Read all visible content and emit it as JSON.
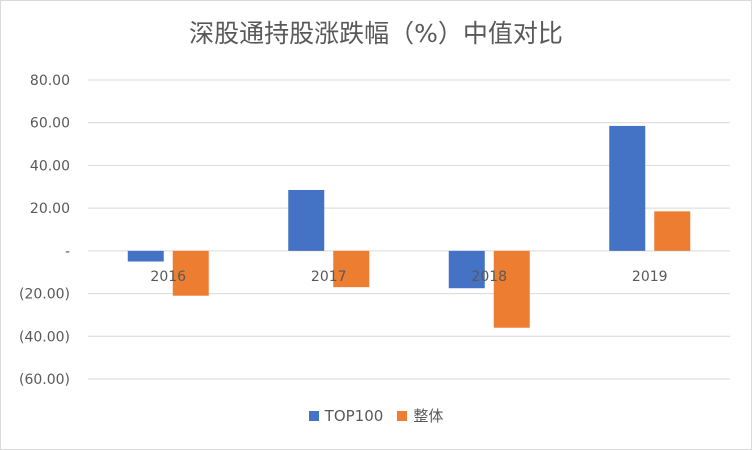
{
  "chart_data": {
    "type": "bar",
    "title": "深股通持股涨跌幅（%）中值对比",
    "categories": [
      "2016",
      "2017",
      "2018",
      "2019"
    ],
    "series": [
      {
        "name": "TOP100",
        "color": "#4472c4",
        "values": [
          -5.0,
          28.5,
          -17.5,
          58.5
        ]
      },
      {
        "name": "整体",
        "color": "#ed7d31",
        "values": [
          -21.0,
          -17.0,
          -36.0,
          18.5
        ]
      }
    ],
    "yticks": [
      "80.00",
      "60.00",
      "40.00",
      "20.00",
      "-",
      "(20.00)",
      "(40.00)",
      "(60.00)"
    ],
    "ytick_values": [
      80,
      60,
      40,
      20,
      0,
      -20,
      -40,
      -60
    ],
    "ylim": [
      -60,
      80
    ],
    "grid": true,
    "legend_position": "bottom",
    "xlabel": "",
    "ylabel": ""
  }
}
